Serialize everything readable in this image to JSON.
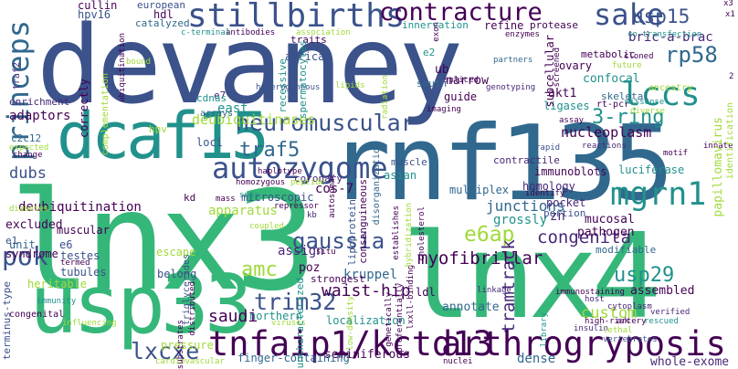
{
  "words": [
    {
      "text": "lnx3",
      "color": "#35b779"
    },
    {
      "text": "devaney",
      "color": "#3b528b"
    },
    {
      "text": "rnf135",
      "color": "#31688e"
    },
    {
      "text": "lnx4",
      "color": "#35b779"
    },
    {
      "text": "usp33",
      "color": "#35b779"
    },
    {
      "text": "dcaf15",
      "color": "#21918c"
    },
    {
      "text": "tnfaip1/kctd13",
      "color": "#440154"
    },
    {
      "text": "arthrogryposis",
      "color": "#440154"
    },
    {
      "text": "stillbirths",
      "color": "#3b528b"
    },
    {
      "text": "contracture",
      "color": "#440154"
    },
    {
      "text": "sake",
      "color": "#3b528b"
    },
    {
      "text": "princeps",
      "color": "#31688e"
    },
    {
      "text": "autozygome",
      "color": "#3b528b"
    },
    {
      "text": "neuromuscular",
      "color": "#3b528b"
    },
    {
      "text": "mgrn1",
      "color": "#21918c"
    },
    {
      "text": "lccs",
      "color": "#21918c"
    },
    {
      "text": "rp58",
      "color": "#31688e"
    },
    {
      "text": "usp15",
      "color": "#3b528b"
    },
    {
      "text": "traf5",
      "color": "#31688e"
    },
    {
      "text": "gaussia",
      "color": "#3b528b"
    },
    {
      "text": "e6ap",
      "color": "#a0da39"
    },
    {
      "text": "congenita",
      "color": "#482878"
    },
    {
      "text": "amc",
      "color": "#a0da39"
    },
    {
      "text": "3-ring",
      "color": "#21918c"
    },
    {
      "text": "trim32",
      "color": "#3b528b"
    },
    {
      "text": "usp29",
      "color": "#21918c"
    },
    {
      "text": "lxcxe",
      "color": "#3b528b"
    },
    {
      "text": "pok",
      "color": "#3b528b"
    },
    {
      "text": "tramtrack",
      "color": "#482878"
    },
    {
      "text": "myofibrillar",
      "color": "#440154"
    },
    {
      "text": "waist-hip",
      "color": "#440154"
    },
    {
      "text": "saudi",
      "color": "#440154"
    },
    {
      "text": "custom",
      "color": "#a0da39"
    },
    {
      "text": "bric-a-brac",
      "color": "#482878"
    },
    {
      "text": "nucleoplasm",
      "color": "#440154"
    },
    {
      "text": "deubiquitinases",
      "color": "#a0da39"
    },
    {
      "text": "cos-7",
      "color": "#440154"
    },
    {
      "text": "dubs",
      "color": "#3b528b"
    },
    {
      "text": "east",
      "color": "#21918c"
    },
    {
      "text": "junctions",
      "color": "#31688e"
    },
    {
      "text": "grossly",
      "color": "#21918c"
    },
    {
      "text": "zn",
      "color": "#482878"
    },
    {
      "text": "assign",
      "color": "#482878"
    },
    {
      "text": "kruppel",
      "color": "#31688e"
    },
    {
      "text": "poz",
      "color": "#440154"
    },
    {
      "text": "apparatus",
      "color": "#a0da39"
    },
    {
      "text": "coronary",
      "color": "#482878"
    },
    {
      "text": "microscopic",
      "color": "#3b528b"
    },
    {
      "text": "deubiquitination",
      "color": "#440154"
    },
    {
      "text": "excluded",
      "color": "#440154"
    },
    {
      "text": "annotate",
      "color": "#31688e"
    },
    {
      "text": "northern",
      "color": "#21918c"
    },
    {
      "text": "localization",
      "color": "#21918c"
    },
    {
      "text": "seminiferous",
      "color": "#440154"
    },
    {
      "text": "finger-containing",
      "color": "#31688e"
    },
    {
      "text": "whole-exome",
      "color": "#482878"
    },
    {
      "text": "dense",
      "color": "#31688e"
    },
    {
      "text": "assembled",
      "color": "#440154"
    },
    {
      "text": "mucosal",
      "color": "#440154"
    },
    {
      "text": "pathogen",
      "color": "#440154"
    },
    {
      "text": "immunoblots",
      "color": "#440154"
    },
    {
      "text": "homology",
      "color": "#482878"
    },
    {
      "text": "multiplex",
      "color": "#31688e"
    },
    {
      "text": "pocket",
      "color": "#482878"
    },
    {
      "text": "portion",
      "color": "#3b528b"
    },
    {
      "text": "luciferase",
      "color": "#21918c"
    },
    {
      "text": "contractile",
      "color": "#482878"
    },
    {
      "text": "akt1",
      "color": "#440154"
    },
    {
      "text": "skeletal",
      "color": "#31688e"
    },
    {
      "text": "ligases",
      "color": "#21918c"
    },
    {
      "text": "confocal",
      "color": "#21918c"
    },
    {
      "text": "ub",
      "color": "#440154"
    },
    {
      "text": "narrow",
      "color": "#440154"
    },
    {
      "text": "guide",
      "color": "#440154"
    },
    {
      "text": "south",
      "color": "#31688e"
    },
    {
      "text": "african",
      "color": "#3b528b"
    },
    {
      "text": "hpv16",
      "color": "#3b528b"
    },
    {
      "text": "cullin",
      "color": "#440154"
    },
    {
      "text": "hdl",
      "color": "#440154"
    },
    {
      "text": "catalyzed",
      "color": "#31688e"
    },
    {
      "text": "refine",
      "color": "#440154"
    },
    {
      "text": "protease",
      "color": "#440154"
    },
    {
      "text": "innervation",
      "color": "#21918c"
    },
    {
      "text": "european",
      "color": "#3b528b"
    },
    {
      "text": "adaptors",
      "color": "#440154"
    },
    {
      "text": "enrichment",
      "color": "#482878"
    },
    {
      "text": "c2c12",
      "color": "#31688e"
    },
    {
      "text": "e7",
      "color": "#482878"
    },
    {
      "text": "e2",
      "color": "#21918c"
    },
    {
      "text": "arrays",
      "color": "#31688e"
    },
    {
      "text": "cdnas",
      "color": "#21918c"
    },
    {
      "text": "loci",
      "color": "#3b528b"
    },
    {
      "text": "hpv",
      "color": "#a0da39"
    },
    {
      "text": "asian",
      "color": "#21918c"
    },
    {
      "text": "muscle",
      "color": "#3b528b"
    },
    {
      "text": "rt-pcr",
      "color": "#440154"
    },
    {
      "text": "ovary",
      "color": "#440154"
    },
    {
      "text": "metabolic",
      "color": "#440154"
    },
    {
      "text": "ancestry",
      "color": "#a0da39"
    },
    {
      "text": "traits",
      "color": "#440154"
    },
    {
      "text": "correctly",
      "color": "#440154"
    },
    {
      "text": "unit",
      "color": "#31688e"
    },
    {
      "text": "syndrome",
      "color": "#440154"
    },
    {
      "text": "muscular",
      "color": "#440154"
    },
    {
      "text": "e1",
      "color": "#3b528b"
    },
    {
      "text": "e6",
      "color": "#3b528b"
    },
    {
      "text": "testes",
      "color": "#3b528b"
    },
    {
      "text": "tubules",
      "color": "#3b528b"
    },
    {
      "text": "escape",
      "color": "#a0da39"
    },
    {
      "text": "belong",
      "color": "#3b528b"
    },
    {
      "text": "strongest",
      "color": "#440154"
    },
    {
      "text": "kd",
      "color": "#440154"
    },
    {
      "text": "heritable",
      "color": "#a0da39"
    },
    {
      "text": "pressure",
      "color": "#a0da39"
    },
    {
      "text": "congenital",
      "color": "#440154"
    },
    {
      "text": "custom",
      "color": "#a0da39"
    },
    {
      "text": "ldl",
      "color": "#440154"
    },
    {
      "text": "modifiable",
      "color": "#31688e"
    },
    {
      "text": "cytoplasm",
      "color": "#482878"
    },
    {
      "text": "host",
      "color": "#482878"
    },
    {
      "text": "high-risk",
      "color": "#440154"
    },
    {
      "text": "artery",
      "color": "#440154"
    },
    {
      "text": "insulin",
      "color": "#482878"
    },
    {
      "text": "verified",
      "color": "#482878"
    },
    {
      "text": "rescued",
      "color": "#21918c"
    },
    {
      "text": "lethal",
      "color": "#a0da39"
    },
    {
      "text": "vertebrates",
      "color": "#3b528b"
    },
    {
      "text": "nuclei",
      "color": "#440154"
    },
    {
      "text": "library",
      "color": "#21918c"
    },
    {
      "text": "linkage",
      "color": "#482878"
    },
    {
      "text": "immunostaining",
      "color": "#440154"
    },
    {
      "text": "identify",
      "color": "#440154"
    },
    {
      "text": "innate",
      "color": "#440154"
    },
    {
      "text": "motif",
      "color": "#440154"
    },
    {
      "text": "reactions",
      "color": "#482878"
    },
    {
      "text": "rapid",
      "color": "#3b528b"
    },
    {
      "text": "assay",
      "color": "#440154"
    },
    {
      "text": "diverse",
      "color": "#a0da39"
    },
    {
      "text": "missense",
      "color": "#21918c"
    },
    {
      "text": "imaging",
      "color": "#440154"
    },
    {
      "text": "spliced",
      "color": "#440154"
    },
    {
      "text": "lipids",
      "color": "#a0da39"
    },
    {
      "text": "heterogeneous",
      "color": "#3b528b"
    },
    {
      "text": "genotyping",
      "color": "#482878"
    },
    {
      "text": "partners",
      "color": "#31688e"
    },
    {
      "text": "cloned",
      "color": "#440154"
    },
    {
      "text": "future",
      "color": "#a0da39"
    },
    {
      "text": "co-transfection",
      "color": "#21918c"
    },
    {
      "text": "enzymes",
      "color": "#440154"
    },
    {
      "text": "association",
      "color": "#a0da39"
    },
    {
      "text": "antibodies",
      "color": "#440154"
    },
    {
      "text": "c-terminal",
      "color": "#21918c"
    },
    {
      "text": "bound",
      "color": "#a0da39"
    },
    {
      "text": "haplotype",
      "color": "#440154"
    },
    {
      "text": "homozygous",
      "color": "#440154"
    },
    {
      "text": "snps",
      "color": "#21918c"
    },
    {
      "text": "mass",
      "color": "#440154"
    },
    {
      "text": "repressor",
      "color": "#440154"
    },
    {
      "text": "peptide",
      "color": "#a0da39"
    },
    {
      "text": "coupled",
      "color": "#a0da39"
    },
    {
      "text": "kb",
      "color": "#482878"
    },
    {
      "text": "situ",
      "color": "#440154"
    },
    {
      "text": "change",
      "color": "#440154"
    },
    {
      "text": "expected",
      "color": "#a0da39"
    },
    {
      "text": "diabetes",
      "color": "#a0da39"
    },
    {
      "text": "influencing",
      "color": "#a0da39"
    },
    {
      "text": "cardiovascular",
      "color": "#a0da39"
    },
    {
      "text": "viruses",
      "color": "#a0da39"
    },
    {
      "text": "immunity",
      "color": "#21918c"
    },
    {
      "text": "termed",
      "color": "#440154"
    },
    {
      "text": "x3",
      "color": "#440154"
    },
    {
      "text": "x1",
      "color": "#440154"
    },
    {
      "text": "2",
      "color": "#440154"
    },
    {
      "text": "terminus-type",
      "color": "#3b528b"
    },
    {
      "text": "traf2",
      "color": "#482878"
    },
    {
      "text": "ubiquitination",
      "color": "#440154"
    },
    {
      "text": "complementation",
      "color": "#a0da39"
    },
    {
      "text": "substrates",
      "color": "#440154"
    },
    {
      "text": "recessive",
      "color": "#21918c"
    },
    {
      "text": "spermatocytes",
      "color": "#21918c"
    },
    {
      "text": "uncharacterized",
      "color": "#21918c"
    },
    {
      "text": "distributed",
      "color": "#440154"
    },
    {
      "text": "lipoprotein",
      "color": "#3b528b"
    },
    {
      "text": "low-density",
      "color": "#a0da39"
    },
    {
      "text": "consanguineous",
      "color": "#440154"
    },
    {
      "text": "triglycerides",
      "color": "#3b528b"
    },
    {
      "text": "disorganization",
      "color": "#31688e"
    },
    {
      "text": "genetically",
      "color": "#440154"
    },
    {
      "text": "preferentially",
      "color": "#440154"
    },
    {
      "text": "lxxll-binding",
      "color": "#440154"
    },
    {
      "text": "autosomal",
      "color": "#440154"
    },
    {
      "text": "establishes",
      "color": "#440154"
    },
    {
      "text": "hybridization",
      "color": "#a0da39"
    },
    {
      "text": "cholesterol",
      "color": "#440154"
    },
    {
      "text": "subcellular",
      "color": "#440154"
    },
    {
      "text": "screened",
      "color": "#440154"
    },
    {
      "text": "papillomavirus",
      "color": "#a0da39"
    },
    {
      "text": "identification",
      "color": "#a0da39"
    },
    {
      "text": "exon",
      "color": "#440154"
    },
    {
      "text": "radiation",
      "color": "#a0da39"
    }
  ]
}
